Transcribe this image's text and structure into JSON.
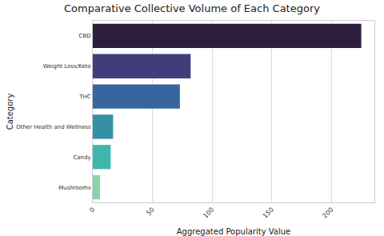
{
  "chart_data": {
    "type": "bar",
    "orientation": "horizontal",
    "title": "Comparative Collective Volume of Each Category",
    "x_label": "Aggregated Popularity Value",
    "y_label": "Category",
    "categories": [
      "CBD",
      "Weight Loss/Keto",
      "THC",
      "Other Health and Wellness",
      "Candy",
      "Mushrooms"
    ],
    "values": [
      225,
      82,
      73,
      17,
      15,
      6
    ],
    "colors": [
      "#2d1e3e",
      "#413d7b",
      "#37659e",
      "#348fa7",
      "#40b7ad",
      "#8bd3a9"
    ],
    "xlim": [
      0,
      236
    ],
    "xticks": [
      0,
      50,
      100,
      150,
      200
    ],
    "grid": true
  }
}
